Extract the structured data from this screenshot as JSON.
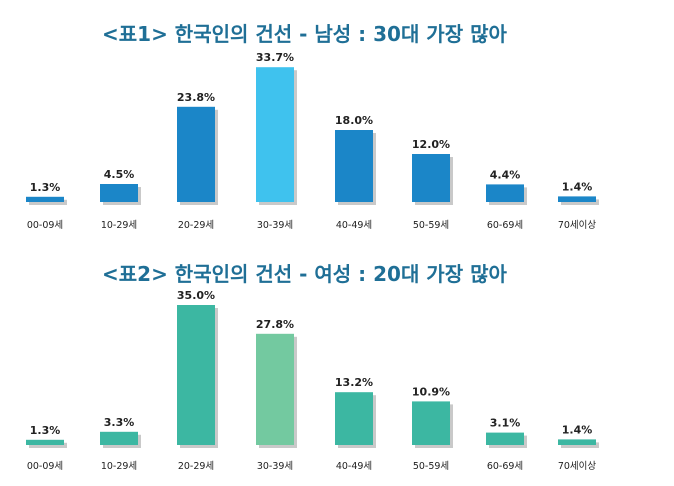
{
  "chart_data": [
    {
      "type": "bar",
      "title": "<표1> 한국인의 건선 - 남성 : 30대 가장 많아",
      "categories": [
        "00-09세",
        "10-29세",
        "20-29세",
        "30-39세",
        "40-49세",
        "50-59세",
        "60-69세",
        "70세이상"
      ],
      "values": [
        1.3,
        4.5,
        23.8,
        33.7,
        18.0,
        12.0,
        4.4,
        1.4
      ],
      "value_labels": [
        "1.3%",
        "4.5%",
        "23.8%",
        "33.7%",
        "18.0%",
        "12.0%",
        "4.4%",
        "1.4%"
      ],
      "ylim": [
        0,
        36
      ],
      "colors": {
        "bar": "#1b86c8",
        "highlight": "#3fc2ee",
        "shadow": "#c9c9c9"
      },
      "highlight_index": 3
    },
    {
      "type": "bar",
      "title": "<표2> 한국인의 건선 - 여성 : 20대 가장 많아",
      "categories": [
        "00-09세",
        "10-29세",
        "20-29세",
        "30-39세",
        "40-49세",
        "50-59세",
        "60-69세",
        "70세이상"
      ],
      "values": [
        1.3,
        3.3,
        35.0,
        27.8,
        13.2,
        10.9,
        3.1,
        1.4
      ],
      "value_labels": [
        "1.3%",
        "3.3%",
        "35.0%",
        "27.8%",
        "13.2%",
        "10.9%",
        "3.1%",
        "1.4%"
      ],
      "ylim": [
        0,
        36
      ],
      "colors": {
        "bar": "#3cb7a2",
        "highlight": "#73c9a0",
        "shadow": "#c9c9c9"
      },
      "highlight_index": 3
    }
  ]
}
